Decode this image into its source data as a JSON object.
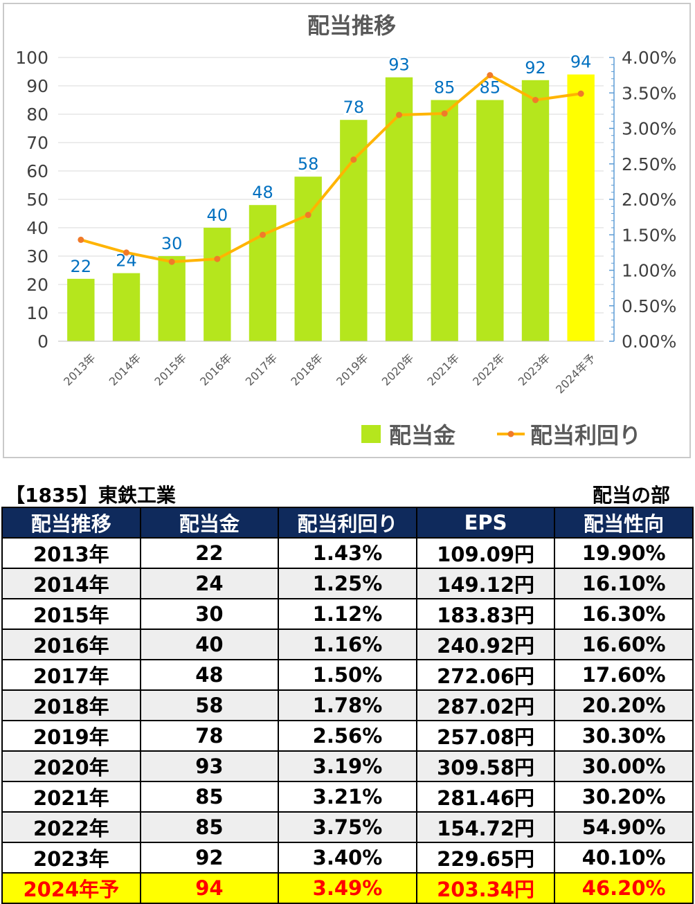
{
  "chart_data": {
    "type": "bar",
    "title": "配当推移",
    "categories": [
      "2013年",
      "2014年",
      "2015年",
      "2016年",
      "2017年",
      "2018年",
      "2019年",
      "2020年",
      "2021年",
      "2022年",
      "2023年",
      "2024年予"
    ],
    "series": [
      {
        "name": "配当金",
        "type": "bar",
        "axis": "left",
        "values": [
          22,
          24,
          30,
          40,
          48,
          58,
          78,
          93,
          85,
          85,
          92,
          94
        ],
        "color": "#b5e61d",
        "highlight_last_color": "#ffff00"
      },
      {
        "name": "配当利回り",
        "type": "line",
        "axis": "right",
        "values": [
          1.43,
          1.25,
          1.12,
          1.16,
          1.5,
          1.78,
          2.56,
          3.19,
          3.21,
          3.75,
          3.4,
          3.49
        ],
        "color": "#ffb400",
        "marker_color": "#f07a2a"
      }
    ],
    "y_left": {
      "min": 0,
      "max": 100,
      "ticks": [
        "0",
        "10",
        "20",
        "30",
        "40",
        "50",
        "60",
        "70",
        "80",
        "90",
        "100"
      ]
    },
    "y_right": {
      "min": 0,
      "max": 4,
      "ticks": [
        "0.00%",
        "0.50%",
        "1.00%",
        "1.50%",
        "2.00%",
        "2.50%",
        "3.00%",
        "3.50%",
        "4.00%"
      ]
    },
    "data_label_color": "#0070c0",
    "grid": true,
    "legend": "bottom-right"
  },
  "company": "【1835】東鉄工業",
  "section": "配当の部",
  "table": {
    "headers": [
      "配当推移",
      "配当金",
      "配当利回り",
      "EPS",
      "配当性向"
    ],
    "rows": [
      [
        "2013年",
        "22",
        "1.43%",
        "109.09円",
        "19.90%"
      ],
      [
        "2014年",
        "24",
        "1.25%",
        "149.12円",
        "16.10%"
      ],
      [
        "2015年",
        "30",
        "1.12%",
        "183.83円",
        "16.30%"
      ],
      [
        "2016年",
        "40",
        "1.16%",
        "240.92円",
        "16.60%"
      ],
      [
        "2017年",
        "48",
        "1.50%",
        "272.06円",
        "17.60%"
      ],
      [
        "2018年",
        "58",
        "1.78%",
        "287.02円",
        "20.20%"
      ],
      [
        "2019年",
        "78",
        "2.56%",
        "257.08円",
        "30.30%"
      ],
      [
        "2020年",
        "93",
        "3.19%",
        "309.58円",
        "30.00%"
      ],
      [
        "2021年",
        "85",
        "3.21%",
        "281.46円",
        "30.20%"
      ],
      [
        "2022年",
        "85",
        "3.75%",
        "154.72円",
        "54.90%"
      ],
      [
        "2023年",
        "92",
        "3.40%",
        "229.65円",
        "40.10%"
      ],
      [
        "2024年予",
        "94",
        "3.49%",
        "203.34円",
        "46.20%"
      ]
    ]
  }
}
